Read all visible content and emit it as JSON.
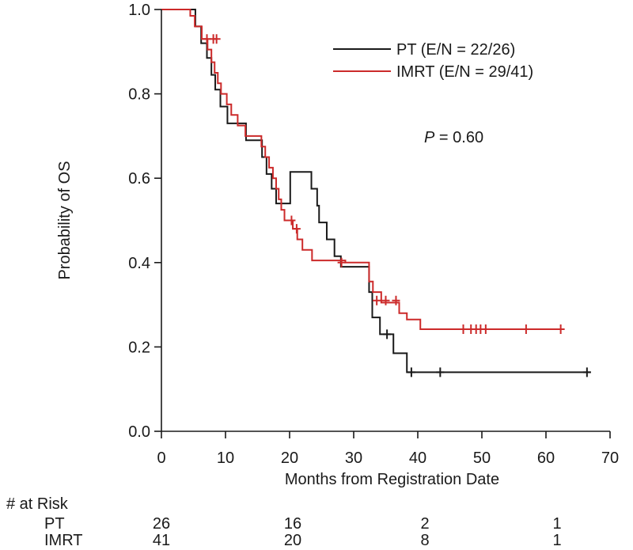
{
  "chart_data": {
    "type": "line",
    "title": "",
    "xlabel": "Months from Registration Date",
    "ylabel": "Probability of OS",
    "xlim": [
      0,
      70
    ],
    "ylim": [
      0,
      1
    ],
    "xticks": [
      0,
      10,
      20,
      30,
      40,
      50,
      60,
      70
    ],
    "yticks": [
      "0.0",
      "0.2",
      "0.4",
      "0.6",
      "0.8",
      "1.0"
    ],
    "annotation": {
      "prefix": "P",
      "text": " = 0.60"
    },
    "legend_position": "top-right",
    "series": [
      {
        "name": "PT (E/N = 22/26)",
        "color": "#1a1a1a",
        "steps": [
          [
            0,
            1.0
          ],
          [
            5.3,
            0.96
          ],
          [
            6.2,
            0.92
          ],
          [
            7.1,
            0.885
          ],
          [
            7.8,
            0.845
          ],
          [
            8.4,
            0.81
          ],
          [
            9.2,
            0.77
          ],
          [
            10.3,
            0.73
          ],
          [
            13.2,
            0.69
          ],
          [
            15.7,
            0.65
          ],
          [
            16.4,
            0.61
          ],
          [
            17.2,
            0.575
          ],
          [
            17.9,
            0.54
          ],
          [
            20.1,
            0.615
          ],
          [
            23.4,
            0.575
          ],
          [
            24.3,
            0.535
          ],
          [
            24.6,
            0.495
          ],
          [
            25.8,
            0.455
          ],
          [
            27.0,
            0.415
          ],
          [
            28.0,
            0.39
          ],
          [
            32.4,
            0.33
          ],
          [
            32.9,
            0.27
          ],
          [
            34.1,
            0.23
          ],
          [
            36.2,
            0.185
          ],
          [
            38.3,
            0.14
          ],
          [
            67.0,
            0.14
          ]
        ],
        "censored": [
          [
            35.2,
            0.23
          ],
          [
            39.0,
            0.14
          ],
          [
            43.5,
            0.14
          ],
          [
            66.4,
            0.14
          ]
        ]
      },
      {
        "name": "IMRT (E/N = 29/41)",
        "color": "#cc2a2a",
        "steps": [
          [
            0,
            1.0
          ],
          [
            4.5,
            0.985
          ],
          [
            5.2,
            0.96
          ],
          [
            6.3,
            0.93
          ],
          [
            7.2,
            0.905
          ],
          [
            7.8,
            0.875
          ],
          [
            8.3,
            0.85
          ],
          [
            8.8,
            0.825
          ],
          [
            9.3,
            0.8
          ],
          [
            10.2,
            0.775
          ],
          [
            10.9,
            0.75
          ],
          [
            11.9,
            0.725
          ],
          [
            13.1,
            0.7
          ],
          [
            15.6,
            0.675
          ],
          [
            16.2,
            0.65
          ],
          [
            16.8,
            0.625
          ],
          [
            17.4,
            0.6
          ],
          [
            17.9,
            0.575
          ],
          [
            18.3,
            0.55
          ],
          [
            18.7,
            0.525
          ],
          [
            19.2,
            0.5
          ],
          [
            20.5,
            0.48
          ],
          [
            21.2,
            0.455
          ],
          [
            22.0,
            0.43
          ],
          [
            23.5,
            0.405
          ],
          [
            28.7,
            0.4
          ],
          [
            32.4,
            0.355
          ],
          [
            33.0,
            0.33
          ],
          [
            34.3,
            0.305
          ],
          [
            37.1,
            0.28
          ],
          [
            38.3,
            0.265
          ],
          [
            40.4,
            0.242
          ],
          [
            62.5,
            0.242
          ]
        ],
        "censored": [
          [
            7.1,
            0.93
          ],
          [
            8.1,
            0.93
          ],
          [
            8.6,
            0.93
          ],
          [
            20.3,
            0.5
          ],
          [
            21.1,
            0.48
          ],
          [
            28.1,
            0.4
          ],
          [
            33.6,
            0.31
          ],
          [
            35.0,
            0.31
          ],
          [
            36.6,
            0.31
          ],
          [
            47.1,
            0.242
          ],
          [
            48.3,
            0.242
          ],
          [
            49.1,
            0.242
          ],
          [
            49.8,
            0.242
          ],
          [
            50.6,
            0.242
          ],
          [
            56.9,
            0.242
          ],
          [
            62.3,
            0.242
          ]
        ]
      }
    ]
  },
  "risk_table": {
    "title": "# at Risk",
    "times": [
      0,
      20,
      40,
      60
    ],
    "rows": [
      {
        "label": "PT",
        "values": [
          "26",
          "16",
          "2",
          "1"
        ]
      },
      {
        "label": "IMRT",
        "values": [
          "41",
          "20",
          "8",
          "1"
        ]
      }
    ]
  }
}
